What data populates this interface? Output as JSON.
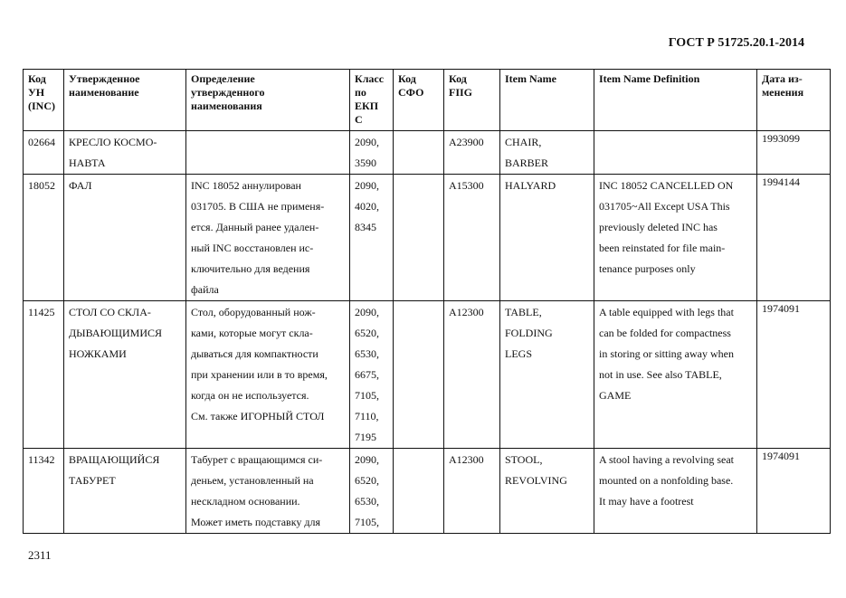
{
  "header": {
    "standard": "ГОСТ Р 51725.20.1-2014"
  },
  "footer": {
    "page_number": "2311"
  },
  "table": {
    "columns": [
      [
        "Код",
        "УН",
        "(INC)"
      ],
      [
        "Утвержденное",
        "наименование"
      ],
      [
        "Определение",
        "утвержденного",
        "наименования"
      ],
      [
        "Класс",
        "по",
        "ЕКП",
        "С"
      ],
      [
        "Код",
        "СФО"
      ],
      [
        "Код",
        "FIIG"
      ],
      [
        "Item Name"
      ],
      [
        "Item Name Definition"
      ],
      [
        "Дата из-",
        "менения"
      ]
    ],
    "rows": [
      {
        "inc": [
          "02664"
        ],
        "name": [
          "КРЕСЛО КОСМО-",
          "НАВТА"
        ],
        "definition": [],
        "class": [
          "2090,",
          "3590"
        ],
        "sfo": [],
        "fiig": [
          "A23900"
        ],
        "item_name": [
          "CHAIR,",
          "BARBER"
        ],
        "item_def": [],
        "date": [
          "1993099"
        ]
      },
      {
        "inc": [
          "18052"
        ],
        "name": [
          "ФАЛ"
        ],
        "definition": [
          "INC 18052 аннулирован",
          "031705. В США не применя-",
          "ется. Данный ранее удален-",
          "ный INC восстановлен ис-",
          "ключительно для ведения",
          "файла"
        ],
        "class": [
          "2090,",
          "4020,",
          "8345"
        ],
        "sfo": [],
        "fiig": [
          "A15300"
        ],
        "item_name": [
          "HALYARD"
        ],
        "item_def": [
          "INC 18052 CANCELLED ON",
          "031705~All Except USA This",
          "previously deleted INC has",
          "been reinstated for file main-",
          "tenance purposes only"
        ],
        "date": [
          "1994144"
        ]
      },
      {
        "inc": [
          "11425"
        ],
        "name": [
          "СТОЛ СО СКЛА-",
          "ДЫВАЮЩИМИСЯ",
          "НОЖКАМИ"
        ],
        "definition": [
          "Стол, оборудованный нож-",
          "ками, которые могут скла-",
          "дываться для компактности",
          "при хранении или в то время,",
          "когда он не используется.",
          "См. также ИГОРНЫЙ СТОЛ"
        ],
        "class": [
          "2090,",
          "6520,",
          "6530,",
          "6675,",
          "7105,",
          "7110,",
          "7195"
        ],
        "sfo": [],
        "fiig": [
          "A12300"
        ],
        "item_name": [
          "TABLE,",
          "FOLDING",
          "LEGS"
        ],
        "item_def": [
          "A table equipped with legs that",
          "can be folded for compactness",
          "in storing or sitting away when",
          "not in use. See also TABLE,",
          "GAME"
        ],
        "date": [
          "1974091"
        ]
      },
      {
        "inc": [
          "11342"
        ],
        "name": [
          "ВРАЩАЮЩИЙСЯ",
          "ТАБУРЕТ"
        ],
        "definition": [
          "Табурет с вращающимся си-",
          "деньем, установленный на",
          "нескладном основании.",
          "Может иметь подставку для"
        ],
        "class": [
          "2090,",
          "6520,",
          "6530,",
          "7105,"
        ],
        "sfo": [],
        "fiig": [
          "A12300"
        ],
        "item_name": [
          "STOOL,",
          "REVOLVING"
        ],
        "item_def": [
          "A stool having a revolving seat",
          "mounted on a nonfolding base.",
          "It may have a footrest"
        ],
        "date": [
          "1974091"
        ]
      }
    ]
  }
}
